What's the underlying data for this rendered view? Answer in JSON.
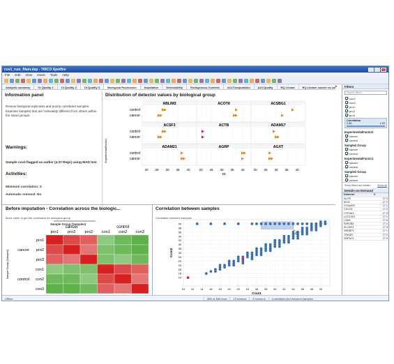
{
  "window": {
    "title": "cov1_rum_filam.dxp - TIBCO Spotfire"
  },
  "menu": [
    "File",
    "Edit",
    "View",
    "Insert",
    "Tools",
    "Help"
  ],
  "toolbar_colors": [
    "#e7b04a",
    "#4f86c6",
    "#6aa84f",
    "#c0504d",
    "#e7b04a",
    "#4f86c6",
    "#8064a2",
    "#f79646",
    "#4bacc6",
    "#6aa84f",
    "#c0504d",
    "#4f86c6",
    "#e7b04a",
    "#8064a2",
    "#6aa84f",
    "#4bacc6",
    "#f79646",
    "#c0504d",
    "#4f86c6",
    "#e7b04a",
    "#6aa84f",
    "#8064a2",
    "#4bacc6",
    "#f79646",
    "#c0504d",
    "#4f86c6",
    "#e7b04a",
    "#6aa84f",
    "#8064a2",
    "#4bacc6",
    "#f79646",
    "#c0504d",
    "#4f86c6",
    "#e7b04a",
    "#6aa84f",
    "#8064a2",
    "#4bacc6",
    "#f79646",
    "#c0504d",
    "#4f86c6",
    "#e7b04a",
    "#6aa84f",
    "#8064a2",
    "#4bacc6",
    "#f79646",
    "#c0504d",
    "#4f86c6",
    "#e7b04a",
    "#6aa84f",
    "#8064a2"
  ],
  "tabs": [
    "Analysis summary",
    "Ct Quality 1",
    "Ct Quality 2",
    "Ct Quality 3",
    "Biological Replication",
    "Imputation",
    "Detectability",
    "Endogenous Controls",
    "ΔCt Computation",
    "ΔCt Quality",
    "RQ Limma",
    "RQ Limma: cancer vs control",
    "Ct"
  ],
  "active_tab": "Biological Replication",
  "tab_scroll_glyph": "▸",
  "info_panel": {
    "title": "Information panel",
    "description": "Review biological replicates and poorly correlated samples. Examine samples that are noticeably different from others within the same groups.",
    "warnings_heading": "Warnings:",
    "warning_text": "Sample cov3 flagged as outlier (4.37 Regs) using MAD test",
    "activities_heading": "Activities:",
    "min_corr": "Minimum correlation: 3",
    "auto_removal": "Automatic removal: No"
  },
  "dist_panel": {
    "title": "Distribution of detector values by biological group",
    "groups": [
      "control",
      "cancer"
    ],
    "y_axis_label": "ExperimentalFactor1",
    "x_label": "Ct",
    "x_ticks": [
      "20",
      "25",
      "30",
      "35",
      "40",
      "20",
      "25",
      "30",
      "35",
      "40",
      "20",
      "25",
      "30",
      "35",
      "40"
    ],
    "genes": [
      {
        "name": "ABLIM3",
        "col": 0,
        "row": 0,
        "control": [
          28,
          29
        ],
        "cancer": [
          26,
          27
        ],
        "color": "#e08a1e"
      },
      {
        "name": "ACOT8",
        "col": 1,
        "row": 0,
        "control": [
          37
        ],
        "cancer": [
          36,
          37
        ],
        "color": "#e08a1e"
      },
      {
        "name": "ACSBG1",
        "col": 2,
        "row": 0,
        "control": [
          38
        ],
        "cancer": [
          33
        ],
        "color": "#e08a1e"
      },
      {
        "name": "ACSF3",
        "col": 0,
        "row": 1,
        "control": [
          28,
          29
        ],
        "cancer": [
          26,
          27
        ],
        "color": "#e08a1e"
      },
      {
        "name": "ACTB",
        "col": 1,
        "row": 1,
        "control": [
          21
        ],
        "cancer": [
          21
        ],
        "color": "#d81b7a"
      },
      {
        "name": "ADAM17",
        "col": 2,
        "row": 1,
        "control": [
          29
        ],
        "cancer": [
          30,
          31
        ],
        "color": "#e08a1e"
      },
      {
        "name": "ADAM21",
        "col": 0,
        "row": 2,
        "control": [
          37
        ],
        "cancer": [
          37,
          38
        ],
        "color": "#e08a1e"
      },
      {
        "name": "AGRP",
        "col": 1,
        "row": 2,
        "control": [
          40,
          41
        ],
        "cancer": [
          40
        ],
        "color": "#e08a1e"
      },
      {
        "name": "AGXT",
        "col": 2,
        "row": 2,
        "control": [
          27
        ],
        "cancer": [
          27,
          28
        ],
        "color": "#e08a1e"
      }
    ]
  },
  "before_panel": {
    "title": "Before imputation - Correlation across the biologic...",
    "subtitle": "Move slider to get the correlation for biological group",
    "selector_label": "Sample Group (Samples)",
    "col_groups": [
      "cancer",
      "control"
    ],
    "cols": [
      "pro1",
      "pro2",
      "pro3",
      "con1",
      "con2",
      "con3"
    ],
    "rows": [
      "pro1",
      "pro2",
      "pro3",
      "con1",
      "con2",
      "con3"
    ],
    "row_groups": [
      "cancer",
      "control"
    ],
    "y_axis_label": "Sample Group (Samples)",
    "x_axis_label": "Correlation",
    "matrix": [
      [
        1.0,
        0.9,
        0.85,
        0.2,
        0.1,
        0.05
      ],
      [
        0.9,
        1.0,
        0.8,
        0.15,
        0.1,
        0.05
      ],
      [
        0.85,
        0.8,
        1.0,
        0.15,
        0.2,
        0.1
      ],
      [
        0.2,
        0.15,
        0.15,
        1.0,
        0.9,
        0.85
      ],
      [
        0.1,
        0.1,
        0.2,
        0.9,
        1.0,
        0.8
      ],
      [
        0.05,
        0.05,
        0.1,
        0.85,
        0.8,
        1.0
      ]
    ],
    "colors": {
      "high": "#d7201f",
      "low": "#4caa35",
      "mid": "#f4f4f4"
    }
  },
  "corr_panel": {
    "title": "Correlation between samples",
    "subtitle": "Correlation between samples",
    "chart_data": {
      "type": "scatter",
      "xlabel": "Ccon1",
      "ylabel": "Ccon2",
      "xlim": [
        10,
        42
      ],
      "ylim": [
        10,
        42
      ],
      "x_ticks": [
        10,
        12,
        14,
        16,
        18,
        20,
        22,
        24,
        26,
        28,
        30,
        32,
        34,
        36,
        38,
        40
      ],
      "y_ticks": [
        14,
        16,
        18,
        20,
        22,
        24,
        26,
        28,
        30,
        32,
        34,
        36,
        38,
        40
      ],
      "series": [
        {
          "color": "#3a6fb0",
          "points": [
            [
              15,
              16
            ],
            [
              16,
              17
            ],
            [
              17,
              17
            ],
            [
              18,
              18
            ],
            [
              18,
              19
            ],
            [
              19,
              19
            ],
            [
              19,
              20
            ],
            [
              20,
              20
            ],
            [
              20,
              21
            ],
            [
              21,
              21
            ],
            [
              21,
              22
            ],
            [
              22,
              22
            ],
            [
              22,
              23
            ],
            [
              23,
              22
            ],
            [
              23,
              23
            ],
            [
              23,
              24
            ],
            [
              24,
              24
            ],
            [
              24,
              25
            ],
            [
              25,
              24
            ],
            [
              25,
              25
            ],
            [
              25,
              26
            ],
            [
              26,
              25
            ],
            [
              26,
              26
            ],
            [
              26,
              27
            ],
            [
              27,
              26
            ],
            [
              27,
              27
            ],
            [
              27,
              28
            ],
            [
              28,
              27
            ],
            [
              28,
              28
            ],
            [
              28,
              29
            ],
            [
              29,
              28
            ],
            [
              29,
              29
            ],
            [
              29,
              30
            ],
            [
              30,
              29
            ],
            [
              30,
              30
            ],
            [
              30,
              31
            ],
            [
              31,
              30
            ],
            [
              31,
              31
            ],
            [
              31,
              32
            ],
            [
              32,
              31
            ],
            [
              32,
              32
            ],
            [
              32,
              33
            ],
            [
              33,
              32
            ],
            [
              33,
              33
            ],
            [
              33,
              34
            ],
            [
              34,
              33
            ],
            [
              34,
              34
            ],
            [
              34,
              35
            ],
            [
              35,
              34
            ],
            [
              35,
              35
            ],
            [
              35,
              36
            ],
            [
              36,
              35
            ],
            [
              36,
              36
            ],
            [
              36,
              37
            ],
            [
              37,
              36
            ],
            [
              37,
              37
            ],
            [
              37,
              38
            ],
            [
              38,
              37
            ],
            [
              38,
              38
            ],
            [
              38,
              39
            ],
            [
              39,
              38
            ],
            [
              39,
              39
            ],
            [
              39,
              40
            ],
            [
              40,
              39
            ],
            [
              40,
              40
            ],
            [
              24,
              26
            ],
            [
              26,
              28
            ],
            [
              28,
              30
            ],
            [
              30,
              32
            ],
            [
              32,
              34
            ],
            [
              34,
              36
            ],
            [
              36,
              38
            ],
            [
              22,
              24
            ],
            [
              20,
              22
            ],
            [
              18,
              20
            ],
            [
              17,
              18
            ],
            [
              21,
              20
            ],
            [
              23,
              21
            ],
            [
              25,
              23
            ],
            [
              27,
              25
            ],
            [
              29,
              27
            ],
            [
              31,
              29
            ],
            [
              33,
              31
            ],
            [
              35,
              33
            ],
            [
              37,
              35
            ],
            [
              39,
              37
            ],
            [
              41,
              41
            ],
            [
              40,
              41
            ],
            [
              41,
              40
            ]
          ]
        },
        {
          "color": "#3a6fb0",
          "points": [
            [
              13,
              40
            ],
            [
              16,
              40
            ],
            [
              19,
              40
            ],
            [
              22,
              40
            ],
            [
              25,
              40
            ],
            [
              26,
              40
            ],
            [
              27,
              40
            ],
            [
              28,
              40
            ],
            [
              29,
              40
            ],
            [
              30,
              40
            ],
            [
              31,
              40
            ],
            [
              32,
              40
            ],
            [
              33,
              40
            ],
            [
              34,
              40
            ],
            [
              35,
              40
            ],
            [
              36,
              40
            ],
            [
              37,
              40
            ],
            [
              38,
              40
            ],
            [
              39,
              40
            ],
            [
              40,
              40
            ],
            [
              41,
              40
            ]
          ]
        },
        {
          "color": "#d81b7a",
          "points": [
            [
              23,
              23
            ],
            [
              11,
              14
            ]
          ]
        }
      ],
      "selection": {
        "x": [
          27,
          34
        ],
        "y": [
          37.5,
          41
        ]
      }
    }
  },
  "filters": {
    "title": "Filters",
    "search_placeholder": "Search filters",
    "samples": [
      "con1",
      "con3",
      "pro1",
      "pro2",
      "pro3"
    ],
    "correlation_label": "Correlation",
    "corr_min": "0.58",
    "corr_max": "1.00",
    "groups": [
      {
        "title": "ExperimentalFactor2",
        "items": [
          "cancer",
          "control"
        ]
      },
      {
        "title": "Sample2 Group",
        "items": [
          "cancer",
          "control"
        ]
      },
      {
        "title": "ExperimentalFactor1",
        "items": [
          "cancer",
          "control"
        ]
      },
      {
        "title": "Sample2 Group",
        "items": [
          "cancer",
          "control"
        ]
      }
    ],
    "footer_left": "Show filters are hidden",
    "footer_right": "Show all"
  },
  "details": {
    "title": "Details-on-Demand",
    "col1": "Detector",
    "col2": "C",
    "rows": [
      [
        "ALO9",
        "27.5"
      ],
      [
        "BCM",
        "27.5"
      ],
      [
        "C19orf53",
        "27.1"
      ],
      [
        "CDC25",
        "27.0"
      ],
      [
        "CYP4A2",
        "27.5"
      ],
      [
        "LOC1002",
        "27.0"
      ],
      [
        "LSM1",
        "27.6"
      ],
      [
        "PAR2B3",
        "27.1"
      ],
      [
        "SLC6P3",
        "27.5"
      ],
      [
        "SREBF1",
        "27.1"
      ],
      [
        "TRADD",
        "27.9"
      ],
      [
        "ZNF613",
        "27.0"
      ]
    ]
  },
  "status": {
    "left": "Offline",
    "rows": "385 of 385 rows",
    "marked": "12 marked",
    "columns": "8 columns",
    "viz": "Correlation plot between samples"
  }
}
